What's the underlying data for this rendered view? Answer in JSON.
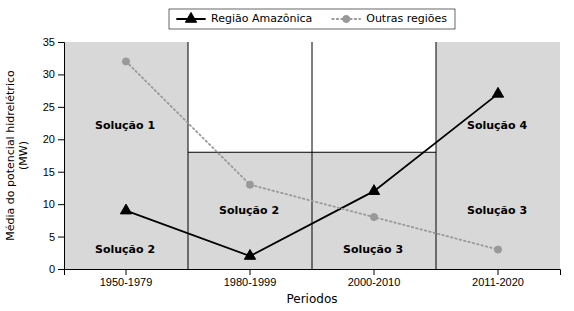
{
  "chart_data": {
    "type": "line",
    "categories": [
      "1950-1979",
      "1980-1999",
      "2000-2010",
      "2011-2020"
    ],
    "xlabel": "Periodos",
    "ylabel": "Média do potencial hidrelétrico\n(MW)",
    "ylim": [
      0,
      35
    ],
    "yticks": [
      0,
      5,
      10,
      15,
      20,
      25,
      30,
      35
    ],
    "grid": false,
    "legend": "top",
    "series": [
      {
        "name": "Região Amazônica",
        "color": "#000000",
        "marker": "triangle",
        "line_style": "solid",
        "values": [
          9,
          2,
          12,
          27
        ]
      },
      {
        "name": "Outras regiões",
        "color": "#999999",
        "marker": "circle",
        "line_style": "dotted",
        "values": [
          32,
          13,
          8,
          3
        ]
      }
    ],
    "regions": [
      {
        "categories": [
          "1950-1979"
        ],
        "y": [
          0,
          35
        ],
        "color": "#d8d8d8"
      },
      {
        "categories": [
          "2011-2020"
        ],
        "y": [
          0,
          35
        ],
        "color": "#d8d8d8"
      },
      {
        "categories": [
          "1980-1999",
          "2000-2010"
        ],
        "y": [
          0,
          18
        ],
        "color": "#d8d8d8"
      }
    ],
    "horizontal_line": {
      "y": 18,
      "categories": [
        "1980-1999",
        "2000-2010"
      ]
    },
    "annotations": [
      {
        "text": "Solução 1",
        "x": "1950-1979",
        "y": 22
      },
      {
        "text": "Solução 2",
        "x": "1950-1979",
        "y": 3
      },
      {
        "text": "Solução 2",
        "x": "1980-1999",
        "y": 9
      },
      {
        "text": "Solução 3",
        "x": "2000-2010",
        "y": 3
      },
      {
        "text": "Solução 4",
        "x": "2011-2020",
        "y": 22
      },
      {
        "text": "Solução 3",
        "x": "2011-2020",
        "y": 9
      }
    ]
  }
}
